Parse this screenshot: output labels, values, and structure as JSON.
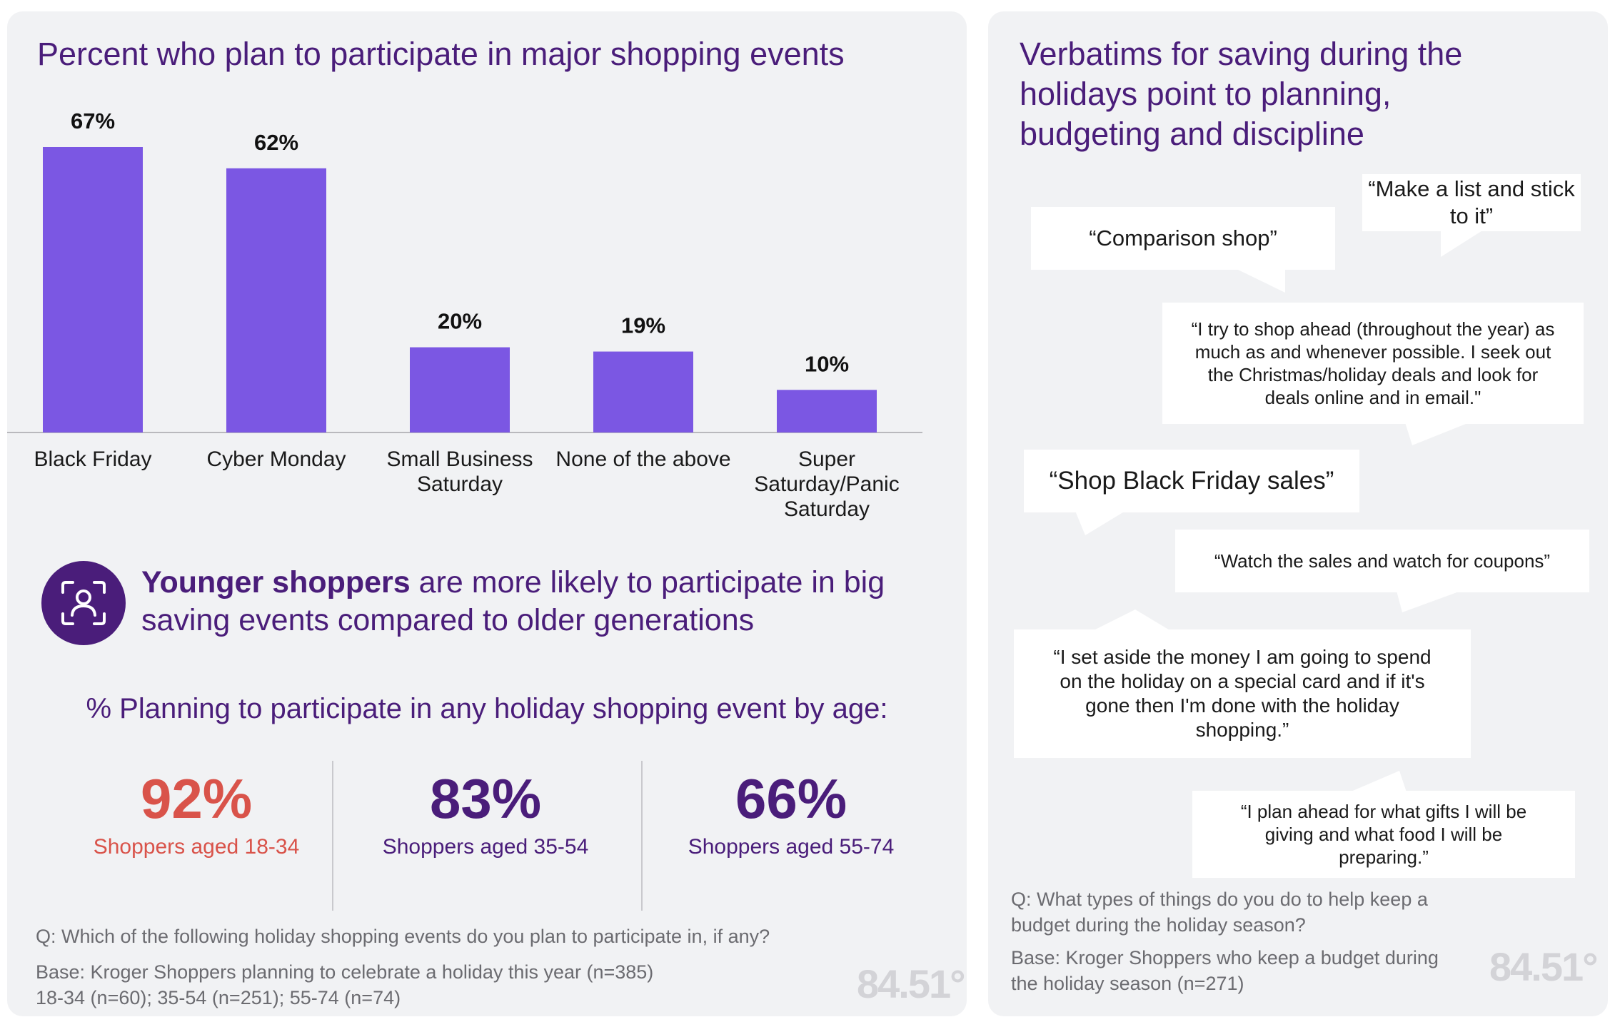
{
  "chart_data": {
    "type": "bar",
    "title": "Percent who plan to participate in major shopping events",
    "categories": [
      [
        "Black Friday"
      ],
      [
        "Cyber Monday"
      ],
      [
        "Small Business",
        "Saturday"
      ],
      [
        "None of the above"
      ],
      [
        "Super",
        "Saturday/Panic",
        "Saturday"
      ]
    ],
    "values": [
      67,
      62,
      20,
      19,
      10
    ],
    "value_labels": [
      "67%",
      "62%",
      "20%",
      "19%",
      "10%"
    ],
    "xlabel": "",
    "ylabel": "",
    "ylim": [
      0,
      67
    ],
    "bar_color": "#7b57e3"
  },
  "callout": {
    "icon": "person-scan-icon",
    "bold": "Younger shoppers",
    "rest": " are more likely to participate in big saving events compared to older generations"
  },
  "age": {
    "heading": "% Planning to participate in any holiday shopping event by age:",
    "stats": [
      {
        "value": "92%",
        "label": "Shoppers aged 18-34",
        "color": "#d9534a"
      },
      {
        "value": "83%",
        "label": "Shoppers aged 35-54",
        "color": "#4a1d7a"
      },
      {
        "value": "66%",
        "label": "Shoppers aged 55-74",
        "color": "#4a1d7a"
      }
    ]
  },
  "left_footer": {
    "question": "Q: Which of the following holiday shopping events do you plan to participate in, if any?",
    "base1": "Base: Kroger Shoppers planning to celebrate a holiday this year (n=385)",
    "base2": "18-34 (n=60); 35-54 (n=251); 55-74 (n=74)"
  },
  "logo": "84.51°",
  "right": {
    "title": "Verbatims for saving during the holidays point to planning, budgeting and discipline",
    "quotes": [
      "“Make a list and stick to it”",
      "“Comparison shop”",
      "“I try to shop ahead (throughout the year) as much as and whenever possible. I seek out the Christmas/holiday deals and look for deals online and in email.\"",
      "“Shop Black Friday sales”",
      "“Watch the sales and watch for coupons”",
      "“I set aside the money I am going to spend on the holiday on a special card and if it's gone then I'm done with the holiday shopping.”",
      "“I plan ahead for what gifts I will be giving and what food I will be preparing.”"
    ],
    "question": "Q: What types of things do you do to help keep a budget during the holiday season?",
    "base": "Base: Kroger Shoppers who keep a budget during the holiday season (n=271)"
  }
}
